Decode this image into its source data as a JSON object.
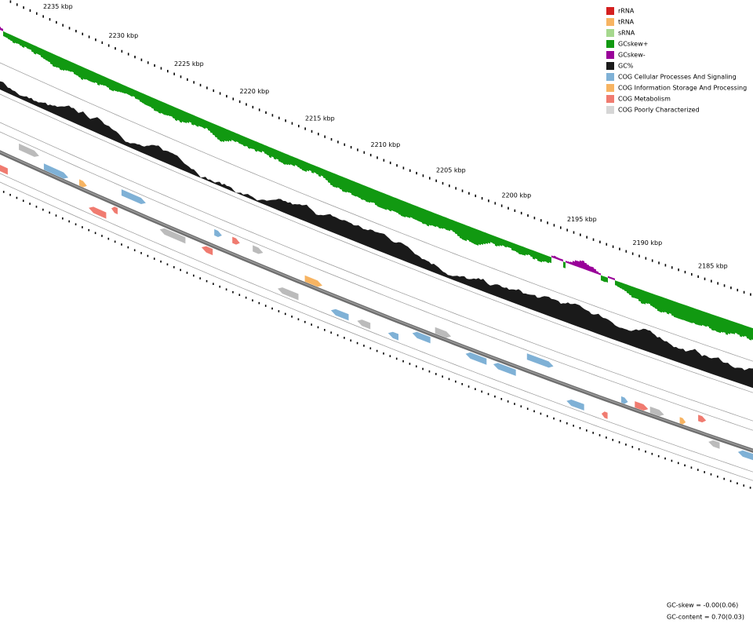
{
  "ruler": {
    "labels": [
      "2235 kbp",
      "2230 kbp",
      "2225 kbp",
      "2220 kbp",
      "2215 kbp",
      "2210 kbp",
      "2205 kbp",
      "2200 kbp",
      "2195 kbp",
      "2190 kbp",
      "2185 kbp"
    ]
  },
  "legend": {
    "items": [
      {
        "label": "rRNA",
        "color": "#d42020"
      },
      {
        "label": "tRNA",
        "color": "#f7b462"
      },
      {
        "label": "sRNA",
        "color": "#a6d88e"
      },
      {
        "label": "GCskew+",
        "color": "#119911"
      },
      {
        "label": "GCskew-",
        "color": "#990099"
      },
      {
        "label": "GC%",
        "color": "#1a1a1a"
      },
      {
        "label": "COG Cellular Processes And Signaling",
        "color": "#7fb1d6"
      },
      {
        "label": "COG Information Storage And Processing",
        "color": "#f7b462"
      },
      {
        "label": "COG Metabolism",
        "color": "#f07b70"
      },
      {
        "label": "COG Poorly Characterized",
        "color": "#d6d6d6"
      }
    ]
  },
  "stats": {
    "gc_skew": "GC-skew = -0.00(0.06)",
    "gc_content": "GC-content = 0.70(0.03)"
  }
}
